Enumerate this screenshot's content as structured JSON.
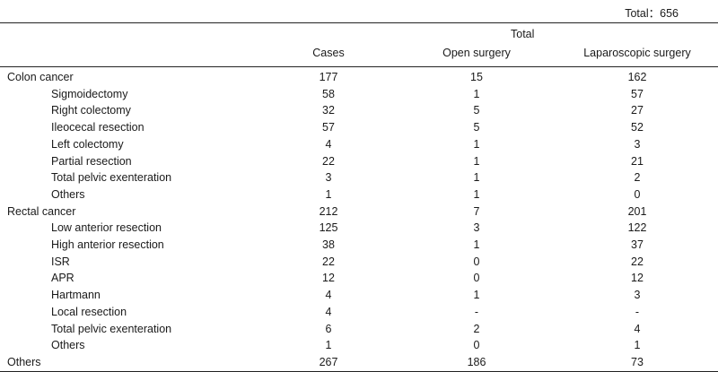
{
  "total_note": "Total：656",
  "header": {
    "group_label": "Total",
    "columns": [
      "Cases",
      "Open surgery",
      "Laparoscopic surgery"
    ]
  },
  "rows": [
    {
      "label": "Colon cancer",
      "cases": "177",
      "open": "15",
      "lap": "162",
      "sub": false
    },
    {
      "label": "Sigmoidectomy",
      "cases": "58",
      "open": "1",
      "lap": "57",
      "sub": true
    },
    {
      "label": "Right colectomy",
      "cases": "32",
      "open": "5",
      "lap": "27",
      "sub": true
    },
    {
      "label": "Ileocecal resection",
      "cases": "57",
      "open": "5",
      "lap": "52",
      "sub": true
    },
    {
      "label": "Left colectomy",
      "cases": "4",
      "open": "1",
      "lap": "3",
      "sub": true
    },
    {
      "label": "Partial resection",
      "cases": "22",
      "open": "1",
      "lap": "21",
      "sub": true
    },
    {
      "label": "Total pelvic exenteration",
      "cases": "3",
      "open": "1",
      "lap": "2",
      "sub": true
    },
    {
      "label": "Others",
      "cases": "1",
      "open": "1",
      "lap": "0",
      "sub": true
    },
    {
      "label": "Rectal cancer",
      "cases": "212",
      "open": "7",
      "lap": "201",
      "sub": false
    },
    {
      "label": "Low anterior resection",
      "cases": "125",
      "open": "3",
      "lap": "122",
      "sub": true
    },
    {
      "label": "High anterior resection",
      "cases": "38",
      "open": "1",
      "lap": "37",
      "sub": true
    },
    {
      "label": "ISR",
      "cases": "22",
      "open": "0",
      "lap": "22",
      "sub": true
    },
    {
      "label": "APR",
      "cases": "12",
      "open": "0",
      "lap": "12",
      "sub": true
    },
    {
      "label": "Hartmann",
      "cases": "4",
      "open": "1",
      "lap": "3",
      "sub": true
    },
    {
      "label": "Local resection",
      "cases": "4",
      "open": "-",
      "lap": "-",
      "sub": true
    },
    {
      "label": "Total pelvic exenteration",
      "cases": "6",
      "open": "2",
      "lap": "4",
      "sub": true
    },
    {
      "label": "Others",
      "cases": "1",
      "open": "0",
      "lap": "1",
      "sub": true
    },
    {
      "label": "Others",
      "cases": "267",
      "open": "186",
      "lap": "73",
      "sub": false
    }
  ]
}
